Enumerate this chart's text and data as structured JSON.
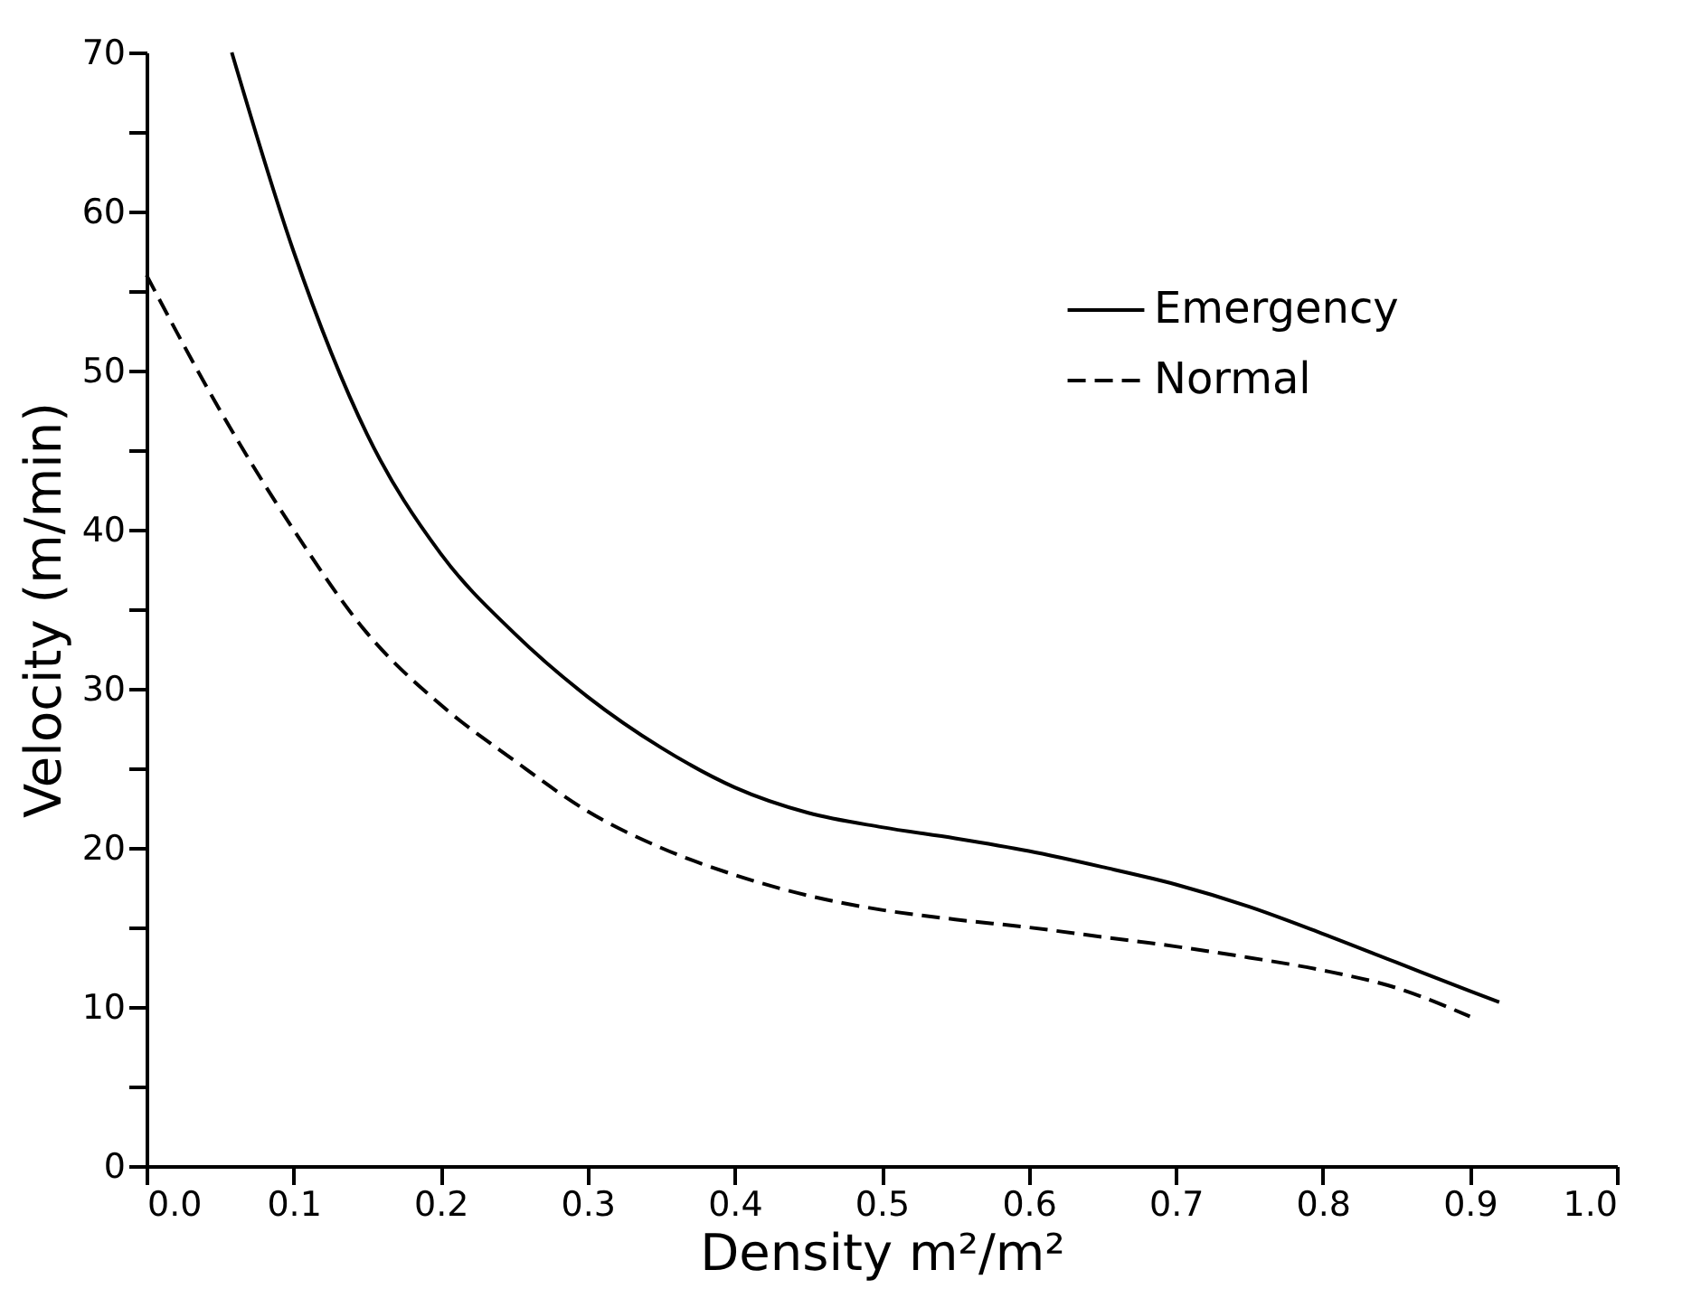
{
  "chart_data": {
    "type": "line",
    "xlabel": "Density m²/m²",
    "ylabel": "Velocity (m/min)",
    "xlim": [
      0,
      1
    ],
    "ylim": [
      0,
      70
    ],
    "xticks": [
      {
        "value": 0,
        "label": "0.0"
      },
      0.1,
      0.2,
      0.3,
      0.4,
      0.5,
      0.6,
      0.7,
      0.8,
      0.9,
      {
        "value": 1,
        "label": "1.0"
      }
    ],
    "yticks": [
      0,
      {
        "value": 5,
        "label": null
      },
      10,
      {
        "value": 15,
        "label": null
      },
      20,
      {
        "value": 25,
        "label": null
      },
      30,
      {
        "value": 35,
        "label": null
      },
      40,
      {
        "value": 45,
        "label": null
      },
      50,
      {
        "value": 55,
        "label": null
      },
      60,
      {
        "value": 65,
        "label": null
      },
      70
    ],
    "legend": "top right",
    "grid": false,
    "marker": "none",
    "series": [
      {
        "name": "Emergency",
        "color": "#000000",
        "line_style": "solid",
        "x": [
          0.058,
          0.1,
          0.15,
          0.2,
          0.25,
          0.3,
          0.35,
          0.4,
          0.45,
          0.5,
          0.55,
          0.6,
          0.65,
          0.7,
          0.75,
          0.8,
          0.85,
          0.9,
          0.92
        ],
        "values": [
          70,
          57.5,
          46,
          38.5,
          33.5,
          29.5,
          26.3,
          23.8,
          22.2,
          21.3,
          20.6,
          19.8,
          18.8,
          17.7,
          16.3,
          14.6,
          12.8,
          11,
          10.3
        ]
      },
      {
        "name": "Normal",
        "color": "#000000",
        "line_style": "dashed",
        "x": [
          0,
          0.05,
          0.1,
          0.15,
          0.2,
          0.25,
          0.3,
          0.35,
          0.4,
          0.45,
          0.5,
          0.55,
          0.6,
          0.65,
          0.7,
          0.75,
          0.8,
          0.85,
          0.9
        ],
        "values": [
          56,
          47.5,
          40,
          33.5,
          29,
          25.5,
          22.3,
          20,
          18.3,
          17,
          16.1,
          15.5,
          15,
          14.4,
          13.8,
          13.1,
          12.3,
          11.2,
          9.4
        ]
      }
    ]
  }
}
